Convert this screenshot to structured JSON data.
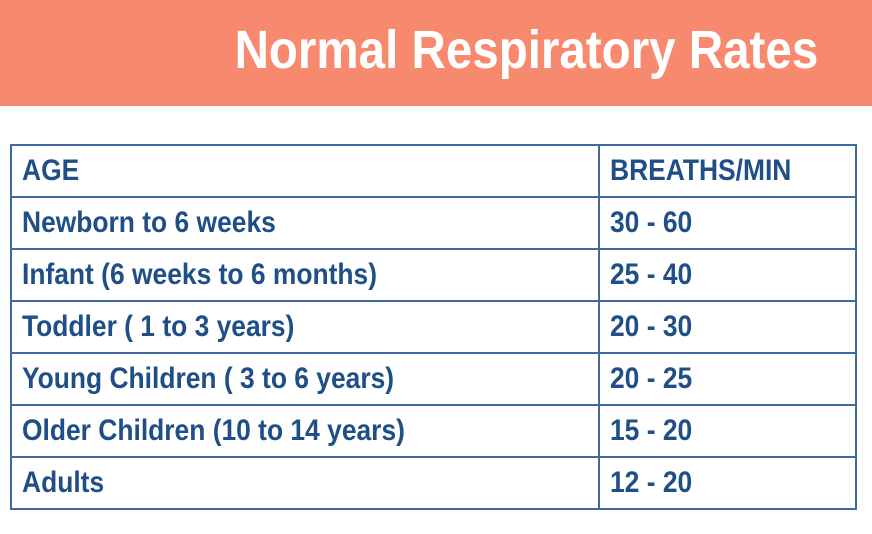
{
  "title": "Normal Respiratory Rates",
  "table": {
    "headers": [
      "AGE",
      "BREATHS/MIN"
    ],
    "rows": [
      [
        "Newborn to 6 weeks",
        "30 - 60"
      ],
      [
        "Infant (6 weeks to 6 months)",
        "25 - 40"
      ],
      [
        "Toddler ( 1 to 3  years)",
        "20 - 30"
      ],
      [
        "Young Children ( 3 to 6 years)",
        "20 - 25"
      ],
      [
        "Older Children (10 to 14 years)",
        "15 - 20"
      ],
      [
        "Adults",
        "12 - 20"
      ]
    ]
  },
  "colors": {
    "banner": "#f7896f",
    "title_text": "#ffffff",
    "table_text": "#1f4f86",
    "table_border": "#3f6aa0"
  }
}
